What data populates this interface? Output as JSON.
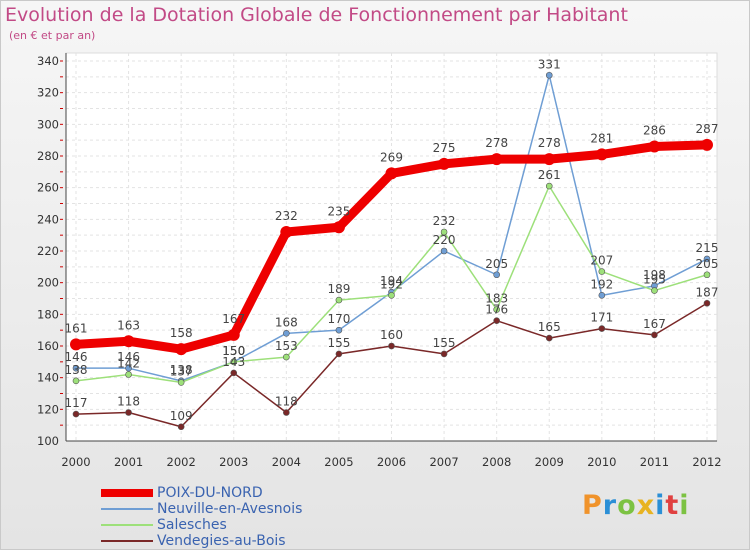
{
  "title": "Evolution de la Dotation Globale de Fonctionnement par Habitant",
  "subtitle": "(en € et par an)",
  "logo": {
    "text": "Proxiti",
    "colors": [
      "#f0932b",
      "#2b8fd6",
      "#7cc242",
      "#e8b321",
      "#2b8fd6",
      "#e04040",
      "#7cc242"
    ]
  },
  "chart_data": {
    "type": "line",
    "title": "Evolution de la Dotation Globale de Fonctionnement par Habitant",
    "subtitle": "(en € et par an)",
    "xlabel": "",
    "ylabel": "",
    "x": [
      "2000",
      "2001",
      "2002",
      "2003",
      "2004",
      "2005",
      "2006",
      "2007",
      "2008",
      "2009",
      "2010",
      "2011",
      "2012"
    ],
    "ylim": [
      100,
      340
    ],
    "yticks": [
      100,
      120,
      140,
      160,
      180,
      200,
      220,
      240,
      260,
      280,
      300,
      320,
      340
    ],
    "grid": true,
    "legend_position": "bottom-left",
    "series": [
      {
        "name": "POIX-DU-NORD",
        "color": "#ee0000",
        "values": [
          161,
          163,
          158,
          167,
          232,
          235,
          269,
          275,
          278,
          278,
          281,
          286,
          287
        ]
      },
      {
        "name": "Neuville-en-Avesnois",
        "color": "#6f9ed4",
        "values": [
          146,
          146,
          138,
          150,
          168,
          170,
          194,
          220,
          205,
          331,
          192,
          198,
          215
        ]
      },
      {
        "name": "Salesches",
        "color": "#9de07a",
        "values": [
          138,
          142,
          137,
          150,
          153,
          189,
          192,
          232,
          183,
          261,
          207,
          195,
          205
        ]
      },
      {
        "name": "Vendegies-au-Bois",
        "color": "#7a2828",
        "values": [
          117,
          118,
          109,
          143,
          118,
          155,
          160,
          155,
          176,
          165,
          171,
          167,
          187
        ]
      }
    ]
  }
}
